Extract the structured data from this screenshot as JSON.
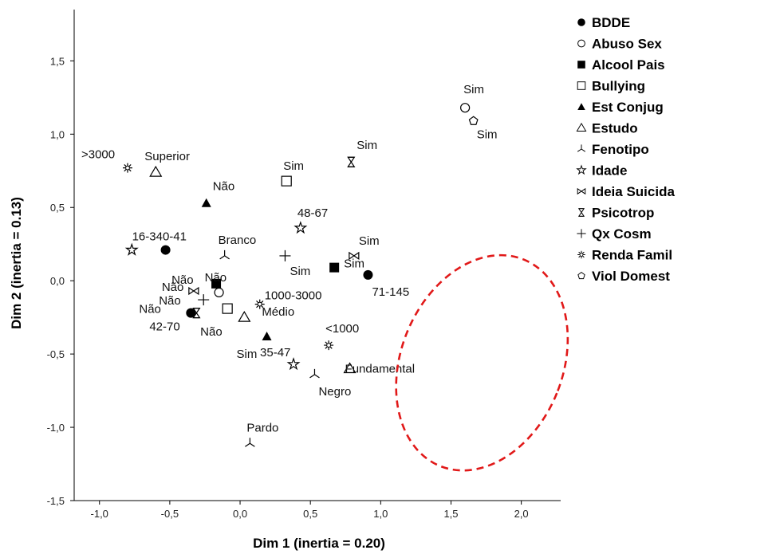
{
  "chart_data": {
    "type": "scatter",
    "title": "",
    "xlabel": "Dim 1 (inertia = 0.20)",
    "ylabel": "Dim 2 (inertia = 0.13)",
    "xlim": [
      -1.18,
      2.28
    ],
    "ylim": [
      -1.5,
      1.85
    ],
    "xticks": [
      -1.0,
      -0.5,
      0.0,
      0.5,
      1.0,
      1.5,
      2.0
    ],
    "yticks": [
      -1.5,
      -1.0,
      -0.5,
      0.0,
      0.5,
      1.0,
      1.5
    ],
    "xtick_labels": [
      "-1,0",
      "-0,5",
      "0,0",
      "0,5",
      "1,0",
      "1,5",
      "2,0"
    ],
    "ytick_labels": [
      "-1,5",
      "-1,0",
      "-0,5",
      "0,0",
      "0,5",
      "1,0",
      "1,5"
    ],
    "grid": false,
    "legend_position": "right",
    "series": [
      {
        "name": "BDDE",
        "marker": "filled-circle",
        "points": [
          {
            "x": -0.53,
            "y": 0.21,
            "label": "16-340-41"
          },
          {
            "x": -0.35,
            "y": -0.22,
            "label": "42-70"
          },
          {
            "x": 0.91,
            "y": 0.04,
            "label": "71-145"
          }
        ]
      },
      {
        "name": "Abuso Sex",
        "marker": "open-circle",
        "points": [
          {
            "x": 1.6,
            "y": 1.18,
            "label": "Sim"
          },
          {
            "x": -0.15,
            "y": -0.08,
            "label": "Não"
          }
        ]
      },
      {
        "name": "Alcool Pais",
        "marker": "filled-square",
        "points": [
          {
            "x": 0.67,
            "y": 0.09,
            "label": "Sim"
          },
          {
            "x": -0.17,
            "y": -0.02,
            "label": "Não"
          }
        ]
      },
      {
        "name": "Bullying",
        "marker": "open-square",
        "points": [
          {
            "x": 0.33,
            "y": 0.68,
            "label": "Sim"
          },
          {
            "x": -0.09,
            "y": -0.19,
            "label": "Não"
          }
        ]
      },
      {
        "name": "Est Conjug",
        "marker": "filled-triangle",
        "points": [
          {
            "x": -0.24,
            "y": 0.53,
            "label": "Não"
          },
          {
            "x": 0.19,
            "y": -0.38,
            "label": "Sim"
          }
        ]
      },
      {
        "name": "Estudo",
        "marker": "open-triangle",
        "points": [
          {
            "x": -0.6,
            "y": 0.74,
            "label": "Superior"
          },
          {
            "x": 0.03,
            "y": -0.25,
            "label": "Médio"
          },
          {
            "x": 0.78,
            "y": -0.6,
            "label": "Fundamental"
          }
        ]
      },
      {
        "name": "Fenotipo",
        "marker": "tri-down",
        "points": [
          {
            "x": -0.11,
            "y": 0.17,
            "label": "Branco"
          },
          {
            "x": 0.53,
            "y": -0.64,
            "label": "Negro"
          },
          {
            "x": 0.07,
            "y": -1.11,
            "label": "Pardo"
          }
        ]
      },
      {
        "name": "Idade",
        "marker": "star",
        "points": [
          {
            "x": -0.77,
            "y": 0.21,
            "label": ""
          },
          {
            "x": 0.43,
            "y": 0.36,
            "label": "48-67"
          },
          {
            "x": 0.38,
            "y": -0.57,
            "label": "35-47"
          }
        ]
      },
      {
        "name": "Ideia Suicida",
        "marker": "bowtie",
        "points": [
          {
            "x": 0.81,
            "y": 0.17,
            "label": "Sim"
          },
          {
            "x": -0.33,
            "y": -0.07,
            "label": "Não"
          }
        ]
      },
      {
        "name": "Psicotrop",
        "marker": "hourglass",
        "points": [
          {
            "x": 0.79,
            "y": 0.81,
            "label": "Sim"
          },
          {
            "x": -0.31,
            "y": -0.22,
            "label": "Não"
          }
        ]
      },
      {
        "name": "Qx Cosm",
        "marker": "plus",
        "points": [
          {
            "x": 0.32,
            "y": 0.17,
            "label": "Sim"
          },
          {
            "x": -0.26,
            "y": -0.13,
            "label": "Não"
          }
        ]
      },
      {
        "name": "Renda Famil",
        "marker": "asterisk-gear",
        "points": [
          {
            "x": -0.8,
            "y": 0.77,
            "label": ">3000"
          },
          {
            "x": 0.14,
            "y": -0.16,
            "label": "1000-3000"
          },
          {
            "x": 0.63,
            "y": -0.44,
            "label": "<1000"
          }
        ]
      },
      {
        "name": "Viol Domest",
        "marker": "pentagon",
        "points": [
          {
            "x": 1.66,
            "y": 1.09,
            "label": "Sim"
          }
        ]
      }
    ],
    "annotation_ellipse": {
      "color": "#e11919",
      "style": "dashed",
      "center": [
        1.72,
        -0.56
      ],
      "semi_axes": [
        0.5,
        0.76
      ]
    }
  }
}
